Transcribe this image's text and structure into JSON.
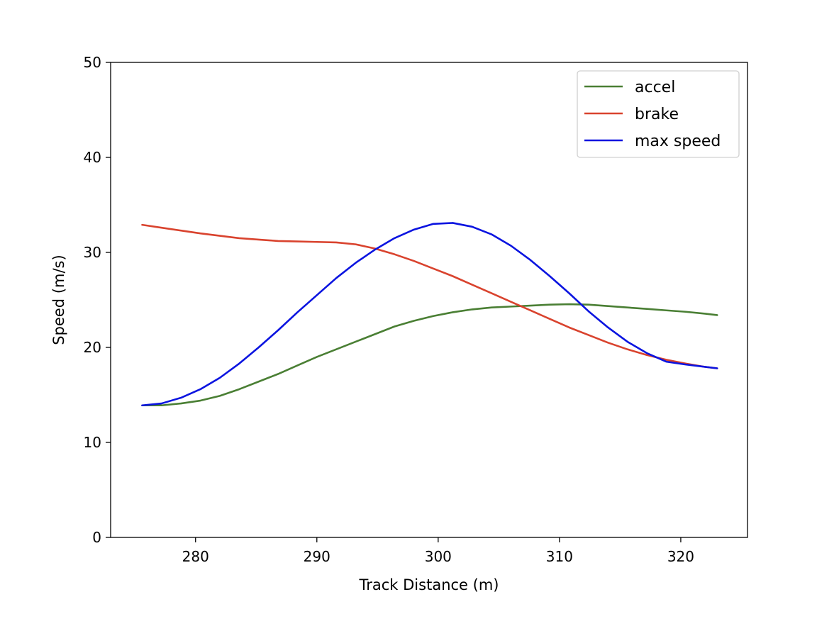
{
  "chart_data": {
    "type": "line",
    "title": "",
    "xlabel": "Track Distance (m)",
    "ylabel": "Speed (m/s)",
    "xlim": [
      273,
      325.5
    ],
    "ylim": [
      0,
      50
    ],
    "xticks": [
      280,
      290,
      300,
      310,
      320
    ],
    "yticks": [
      0,
      10,
      20,
      30,
      40,
      50
    ],
    "grid": false,
    "legend_position": "top-right",
    "series": [
      {
        "name": "accel",
        "color": "#4a7f34",
        "x": [
          275.6,
          277.2,
          278.8,
          280.4,
          282.0,
          283.6,
          285.2,
          286.8,
          288.4,
          290.0,
          291.6,
          293.2,
          294.8,
          296.4,
          298.0,
          299.6,
          301.2,
          302.8,
          304.4,
          306.0,
          307.6,
          309.2,
          310.8,
          312.4,
          314.0,
          315.6,
          317.2,
          318.8,
          320.4,
          322.0,
          323.0
        ],
        "y": [
          13.9,
          13.9,
          14.1,
          14.4,
          14.9,
          15.6,
          16.4,
          17.2,
          18.1,
          19.0,
          19.8,
          20.6,
          21.4,
          22.2,
          22.8,
          23.3,
          23.7,
          24.0,
          24.2,
          24.3,
          24.4,
          24.5,
          24.55,
          24.5,
          24.35,
          24.2,
          24.05,
          23.9,
          23.75,
          23.55,
          23.4
        ]
      },
      {
        "name": "brake",
        "color": "#d9432e",
        "x": [
          275.6,
          277.2,
          278.8,
          280.4,
          282.0,
          283.6,
          285.2,
          286.8,
          288.4,
          290.0,
          291.6,
          293.2,
          294.8,
          296.4,
          298.0,
          299.6,
          301.2,
          302.8,
          304.4,
          306.0,
          307.6,
          309.2,
          310.8,
          312.4,
          314.0,
          315.6,
          317.2,
          318.8,
          320.4,
          322.0,
          323.0
        ],
        "y": [
          32.9,
          32.6,
          32.3,
          32.0,
          31.75,
          31.5,
          31.35,
          31.2,
          31.15,
          31.1,
          31.05,
          30.85,
          30.4,
          29.8,
          29.1,
          28.3,
          27.5,
          26.6,
          25.7,
          24.8,
          23.9,
          23.0,
          22.1,
          21.3,
          20.5,
          19.8,
          19.2,
          18.7,
          18.3,
          17.95,
          17.8
        ]
      },
      {
        "name": "max speed",
        "color": "#0b14e0",
        "x": [
          275.6,
          277.2,
          278.8,
          280.4,
          282.0,
          283.6,
          285.2,
          286.8,
          288.4,
          290.0,
          291.6,
          293.2,
          294.8,
          296.4,
          298.0,
          299.6,
          301.2,
          302.8,
          304.4,
          306.0,
          307.6,
          309.2,
          310.8,
          312.4,
          314.0,
          315.6,
          317.2,
          318.8,
          320.4,
          322.0,
          323.0
        ],
        "y": [
          13.9,
          14.1,
          14.7,
          15.6,
          16.8,
          18.3,
          20.0,
          21.8,
          23.7,
          25.5,
          27.3,
          28.9,
          30.3,
          31.5,
          32.4,
          33.0,
          33.1,
          32.7,
          31.9,
          30.7,
          29.2,
          27.5,
          25.7,
          23.8,
          22.1,
          20.6,
          19.4,
          18.5,
          18.2,
          17.95,
          17.8
        ]
      }
    ]
  }
}
